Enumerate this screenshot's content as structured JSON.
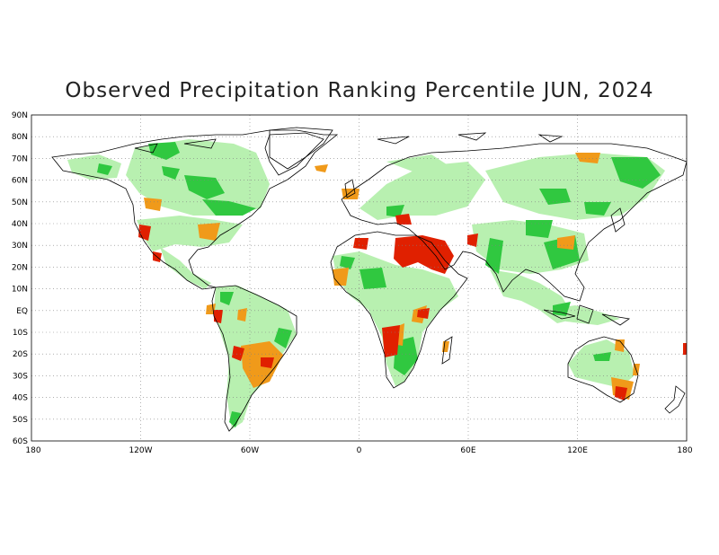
{
  "title": "Observed Precipitation Ranking Percentile JUN, 2024",
  "map": {
    "projection": "equirectangular",
    "lon_range": [
      -180,
      180
    ],
    "lat_range": [
      -60,
      90
    ],
    "lat_ticks": [
      "90N",
      "80N",
      "70N",
      "60N",
      "50N",
      "40N",
      "30N",
      "20N",
      "10N",
      "EQ",
      "10S",
      "20S",
      "30S",
      "40S",
      "50S",
      "60S"
    ],
    "lon_ticks": [
      "180",
      "120W",
      "60W",
      "0",
      "60E",
      "120E",
      "180"
    ],
    "grid": "dotted",
    "colors": {
      "very_dry": "#e02000",
      "dry": "#f09a1a",
      "wet": "#b8f0b0",
      "very_wet": "#30c840",
      "coastline": "#000000"
    }
  }
}
